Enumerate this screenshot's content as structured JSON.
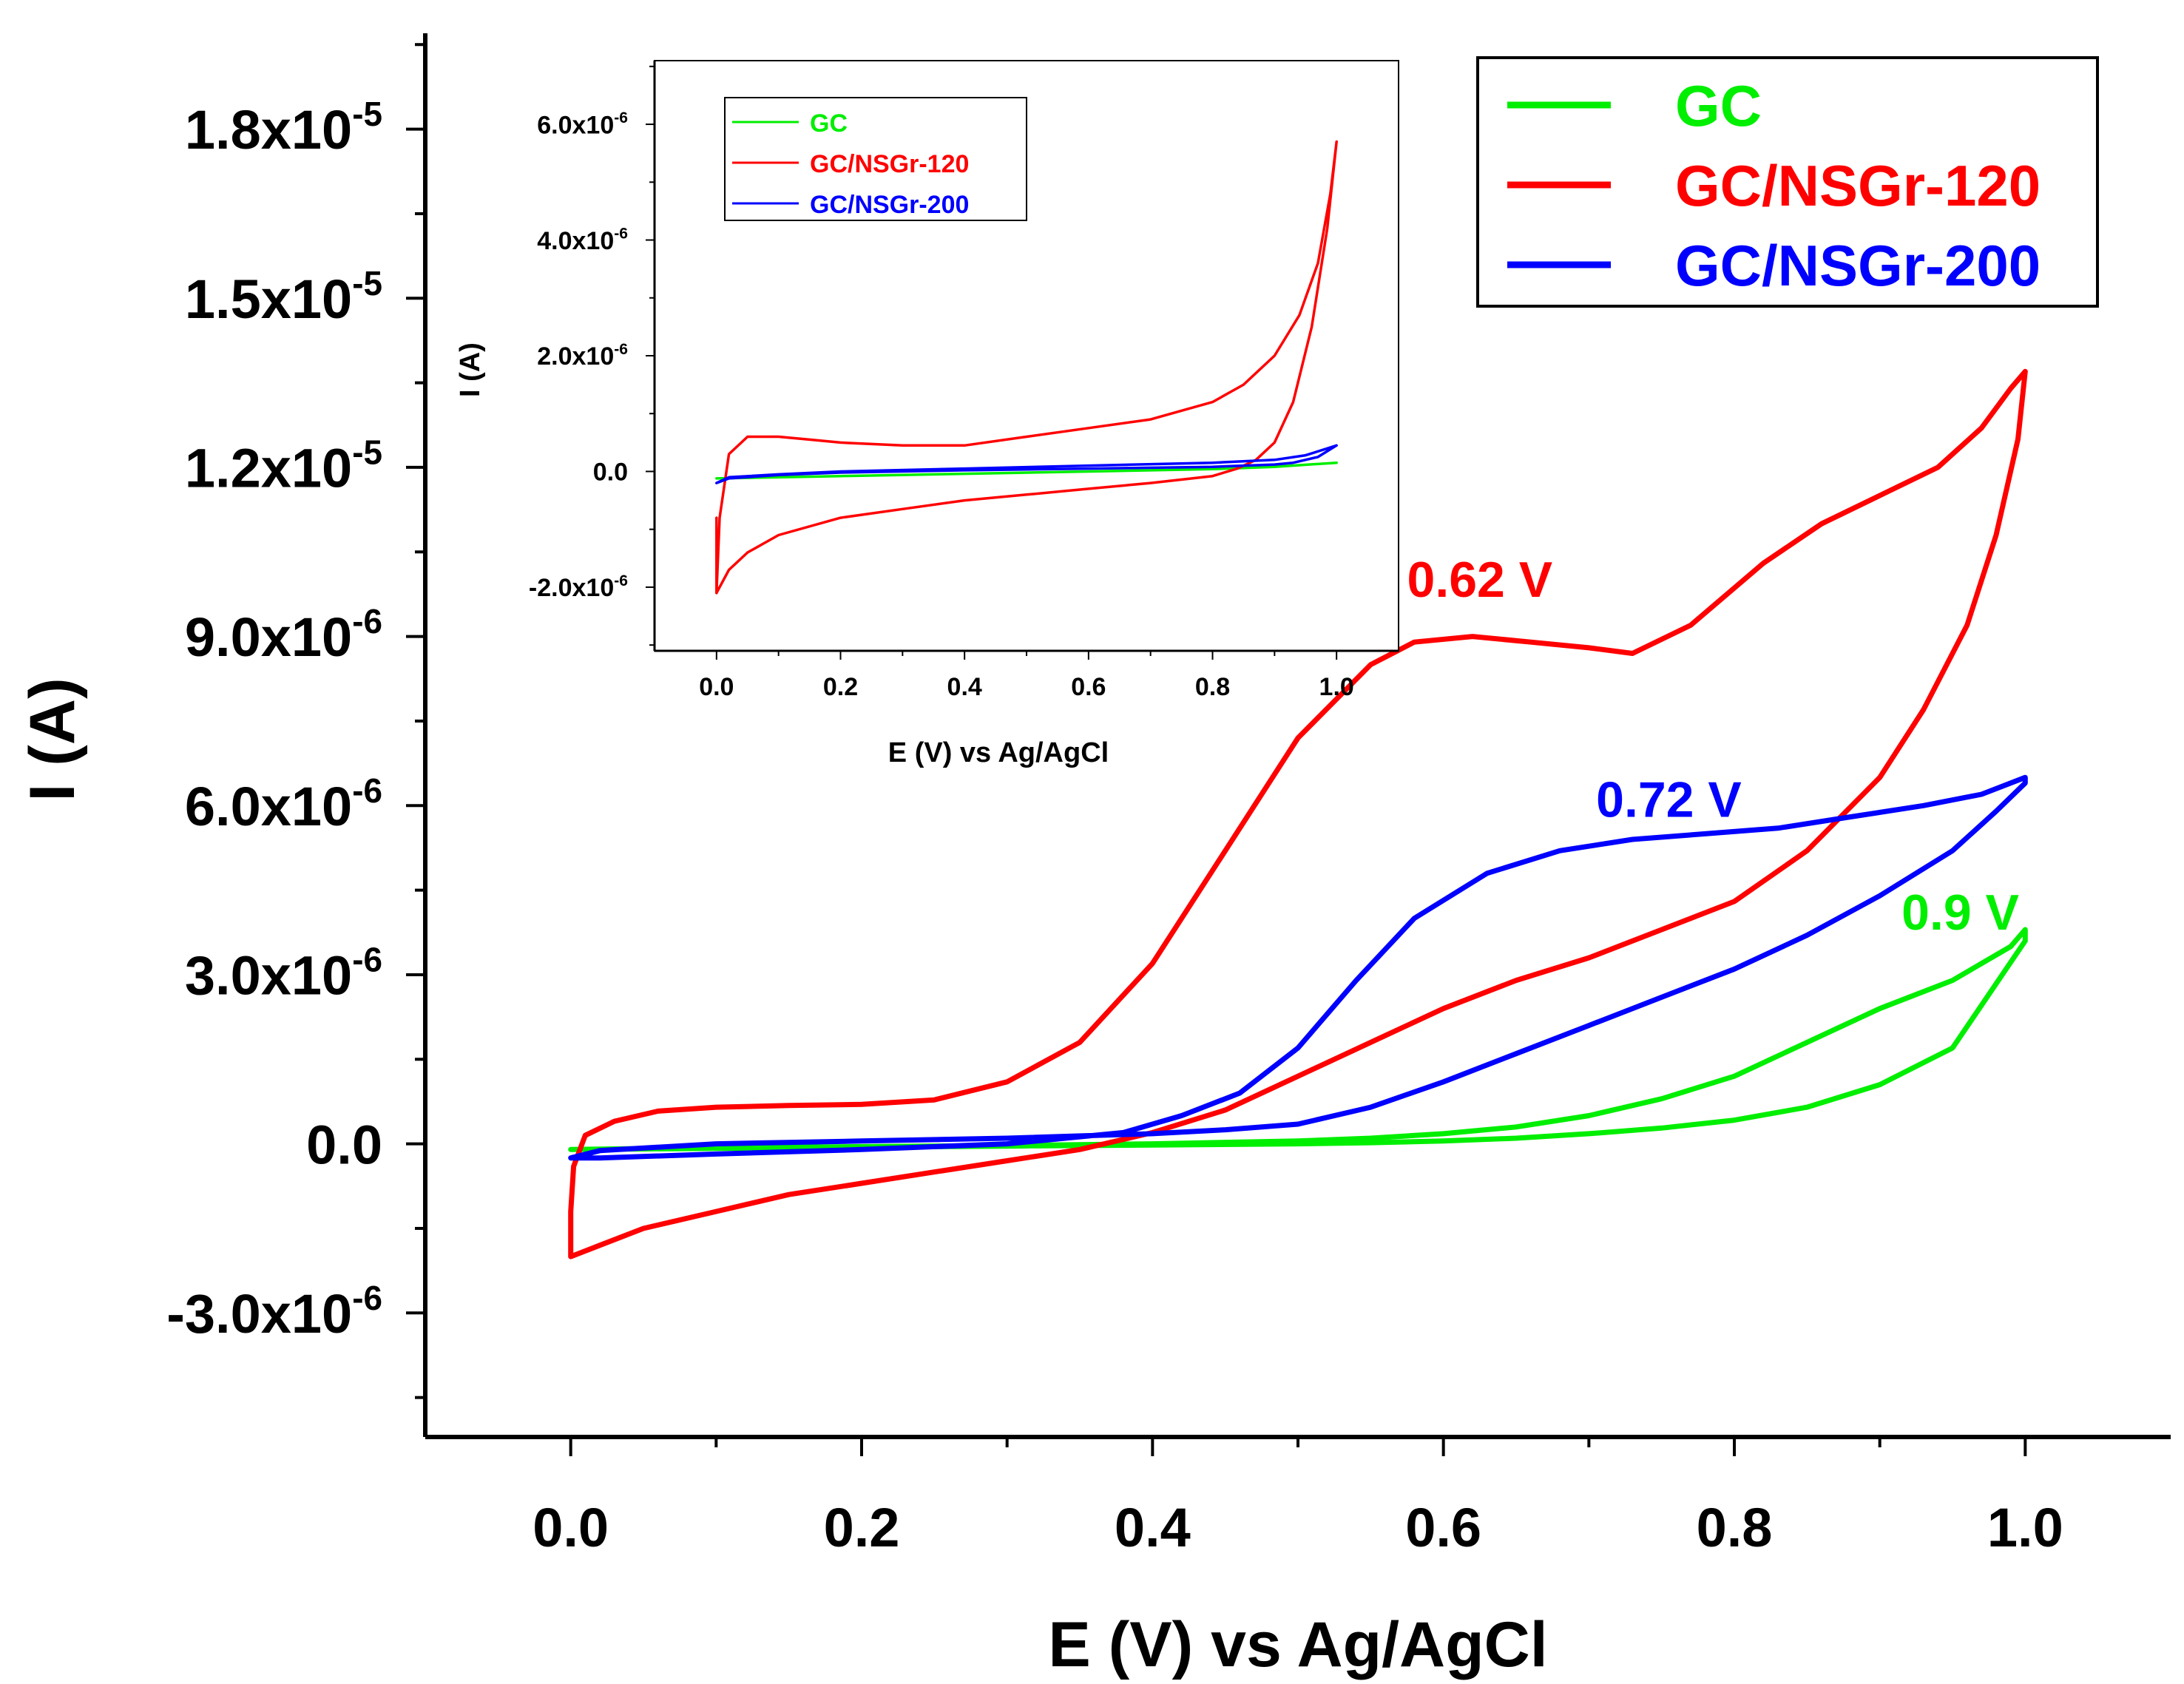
{
  "chart_data": [
    {
      "type": "line",
      "title": "",
      "xlabel": "E (V) vs Ag/AgCl",
      "ylabel": "I (A)",
      "xlim": [
        -0.1,
        1.1
      ],
      "ylim": [
        -5.2e-06,
        1.97e-05
      ],
      "x_ticks": [
        0.0,
        0.2,
        0.4,
        0.6,
        0.8,
        1.0
      ],
      "x_tick_labels": [
        "0.0",
        "0.2",
        "0.4",
        "0.6",
        "0.8",
        "1.0"
      ],
      "y_ticks": [
        -3e-06,
        0.0,
        3e-06,
        6e-06,
        9e-06,
        1.2e-05,
        1.5e-05,
        1.8e-05
      ],
      "y_tick_labels": [
        {
          "mantissa": "-3.0x10",
          "exp": "-6"
        },
        {
          "mantissa": "0.0",
          "exp": ""
        },
        {
          "mantissa": "3.0x10",
          "exp": "-6"
        },
        {
          "mantissa": "6.0x10",
          "exp": "-6"
        },
        {
          "mantissa": "9.0x10",
          "exp": "-6"
        },
        {
          "mantissa": "1.2x10",
          "exp": "-5"
        },
        {
          "mantissa": "1.5x10",
          "exp": "-5"
        },
        {
          "mantissa": "1.8x10",
          "exp": "-5"
        }
      ],
      "legend": {
        "position": "top-right"
      },
      "series": [
        {
          "name": "GC",
          "color": "#00ee00",
          "x": [
            0.0,
            0.1,
            0.2,
            0.3,
            0.4,
            0.5,
            0.55,
            0.6,
            0.65,
            0.7,
            0.75,
            0.8,
            0.85,
            0.9,
            0.95,
            1.0,
            1.0,
            0.99,
            0.97,
            0.95,
            0.9,
            0.85,
            0.8,
            0.75,
            0.7,
            0.65,
            0.6,
            0.55,
            0.5,
            0.4,
            0.3,
            0.2,
            0.1,
            0.03,
            0.0
          ],
          "y": [
            -1e-07,
            -8e-08,
            -6e-08,
            -4e-08,
            -2e-08,
            0.0,
            2e-08,
            5e-08,
            1e-07,
            1.8e-07,
            2.8e-07,
            4.2e-07,
            6.5e-07,
            1.05e-06,
            1.7e-06,
            3.6e-06,
            3.8e-06,
            3.5e-06,
            3.2e-06,
            2.9e-06,
            2.4e-06,
            1.8e-06,
            1.2e-06,
            8e-07,
            5e-07,
            3e-07,
            1.8e-07,
            1e-07,
            5e-08,
            0.0,
            -3e-08,
            -5e-08,
            -7e-08,
            -9e-08,
            -1e-07
          ]
        },
        {
          "name": "GC/NSGr-120",
          "color": "#ff0000",
          "x": [
            0.0,
            0.002,
            0.01,
            0.03,
            0.06,
            0.1,
            0.15,
            0.2,
            0.25,
            0.3,
            0.35,
            0.4,
            0.45,
            0.5,
            0.55,
            0.58,
            0.62,
            0.66,
            0.7,
            0.73,
            0.77,
            0.82,
            0.86,
            0.9,
            0.94,
            0.97,
            0.99,
            1.0,
            0.995,
            0.98,
            0.96,
            0.93,
            0.9,
            0.85,
            0.8,
            0.75,
            0.7,
            0.65,
            0.6,
            0.55,
            0.5,
            0.45,
            0.4,
            0.35,
            0.3,
            0.25,
            0.2,
            0.15,
            0.1,
            0.05,
            0.02,
            0.0,
            0.0
          ],
          "y": [
            -1.2e-06,
            -4e-07,
            1.5e-07,
            4e-07,
            5.8e-07,
            6.5e-07,
            6.8e-07,
            7e-07,
            7.8e-07,
            1.1e-06,
            1.8e-06,
            3.2e-06,
            5.2e-06,
            7.2e-06,
            8.5e-06,
            8.9e-06,
            9e-06,
            8.9e-06,
            8.8e-06,
            8.7e-06,
            9.2e-06,
            1.03e-05,
            1.1e-05,
            1.15e-05,
            1.2e-05,
            1.27e-05,
            1.34e-05,
            1.37e-05,
            1.25e-05,
            1.08e-05,
            9.2e-06,
            7.7e-06,
            6.5e-06,
            5.2e-06,
            4.3e-06,
            3.8e-06,
            3.3e-06,
            2.9e-06,
            2.4e-06,
            1.8e-06,
            1.2e-06,
            6e-07,
            2e-07,
            -1e-07,
            -3e-07,
            -5e-07,
            -7e-07,
            -9e-07,
            -1.2e-06,
            -1.5e-06,
            -1.8e-06,
            -2e-06,
            -1.2e-06
          ]
        },
        {
          "name": "GC/NSGr-200",
          "color": "#0000ff",
          "x": [
            0.0,
            0.02,
            0.1,
            0.2,
            0.3,
            0.4,
            0.45,
            0.5,
            0.55,
            0.6,
            0.65,
            0.7,
            0.75,
            0.8,
            0.85,
            0.9,
            0.95,
            0.98,
            1.0,
            1.0,
            0.97,
            0.93,
            0.88,
            0.83,
            0.78,
            0.73,
            0.68,
            0.63,
            0.58,
            0.54,
            0.5,
            0.46,
            0.42,
            0.38,
            0.3,
            0.2,
            0.1,
            0.02,
            0.0
          ],
          "y": [
            -2.5e-07,
            -1.2e-07,
            0.0,
            5e-08,
            1e-07,
            1.8e-07,
            2.5e-07,
            3.5e-07,
            6.5e-07,
            1.1e-06,
            1.6e-06,
            2.1e-06,
            2.6e-06,
            3.1e-06,
            3.7e-06,
            4.4e-06,
            5.2e-06,
            5.9e-06,
            6.4e-06,
            6.5e-06,
            6.2e-06,
            6e-06,
            5.8e-06,
            5.6e-06,
            5.5e-06,
            5.4e-06,
            5.2e-06,
            4.8e-06,
            4e-06,
            2.9e-06,
            1.7e-06,
            9e-07,
            5e-07,
            2e-07,
            0.0,
            -1e-07,
            -1.8e-07,
            -2.5e-07,
            -2.5e-07
          ]
        }
      ],
      "annotations": [
        {
          "text": "0.62 V",
          "x": 0.575,
          "y": 9.7e-06,
          "color": "#ff0000"
        },
        {
          "text": "0.72 V",
          "x": 0.705,
          "y": 5.8e-06,
          "color": "#0000ff"
        },
        {
          "text": "0.9 V",
          "x": 0.915,
          "y": 3.8e-06,
          "color": "#00ee00"
        }
      ]
    },
    {
      "type": "line",
      "title": "",
      "xlabel": "E (V) vs Ag/AgCl",
      "ylabel": "I (A)",
      "xlim": [
        -0.1,
        1.1
      ],
      "ylim": [
        -3.1e-06,
        7.1e-06
      ],
      "x_ticks": [
        0.0,
        0.2,
        0.4,
        0.6,
        0.8,
        1.0
      ],
      "x_tick_labels": [
        "0.0",
        "0.2",
        "0.4",
        "0.6",
        "0.8",
        "1.0"
      ],
      "y_ticks": [
        -2e-06,
        0.0,
        2e-06,
        4e-06,
        6e-06
      ],
      "y_tick_labels": [
        {
          "mantissa": "-2.0x10",
          "exp": "-6"
        },
        {
          "mantissa": "0.0",
          "exp": ""
        },
        {
          "mantissa": "2.0x10",
          "exp": "-6"
        },
        {
          "mantissa": "4.0x10",
          "exp": "-6"
        },
        {
          "mantissa": "6.0x10",
          "exp": "-6"
        }
      ],
      "legend": {
        "position": "top-left"
      },
      "series": [
        {
          "name": "GC",
          "color": "#00ee00",
          "x": [
            0.0,
            0.2,
            0.4,
            0.6,
            0.8,
            0.9,
            1.0,
            1.0,
            0.9,
            0.8,
            0.6,
            0.4,
            0.2,
            0.0
          ],
          "y": [
            -1.2e-07,
            -8e-08,
            -4e-08,
            0.0,
            4e-08,
            8e-08,
            1.5e-07,
            1.5e-07,
            8e-08,
            4e-08,
            0.0,
            -4e-08,
            -8e-08,
            -1.2e-07
          ]
        },
        {
          "name": "GC/NSGr-120",
          "color": "#ff0000",
          "x": [
            0.0,
            0.005,
            0.02,
            0.05,
            0.1,
            0.15,
            0.2,
            0.3,
            0.4,
            0.5,
            0.6,
            0.7,
            0.8,
            0.85,
            0.9,
            0.94,
            0.97,
            0.99,
            1.0,
            1.0,
            0.985,
            0.96,
            0.93,
            0.9,
            0.87,
            0.84,
            0.8,
            0.7,
            0.6,
            0.5,
            0.4,
            0.3,
            0.2,
            0.1,
            0.05,
            0.02,
            0.005,
            0.0,
            0.0
          ],
          "y": [
            -2.1e-06,
            -8e-07,
            3e-07,
            6e-07,
            6e-07,
            5.5e-07,
            5e-07,
            4.5e-07,
            4.5e-07,
            6e-07,
            7.5e-07,
            9e-07,
            1.2e-06,
            1.5e-06,
            2e-06,
            2.7e-06,
            3.6e-06,
            4.8e-06,
            5.7e-06,
            5.7e-06,
            4.2e-06,
            2.5e-06,
            1.2e-06,
            5e-07,
            2e-07,
            5e-08,
            -8e-08,
            -2e-07,
            -3e-07,
            -4e-07,
            -5e-07,
            -6.5e-07,
            -8e-07,
            -1.1e-06,
            -1.4e-06,
            -1.7e-06,
            -2e-06,
            -2.1e-06,
            -8e-07
          ]
        },
        {
          "name": "GC/NSGr-200",
          "color": "#0000ff",
          "x": [
            0.0,
            0.02,
            0.1,
            0.2,
            0.4,
            0.6,
            0.8,
            0.9,
            0.95,
            0.98,
            1.0,
            1.0,
            0.97,
            0.93,
            0.9,
            0.8,
            0.6,
            0.4,
            0.2,
            0.1,
            0.02,
            0.0
          ],
          "y": [
            -2e-07,
            -1e-07,
            -5e-08,
            0.0,
            5e-08,
            1e-07,
            1.5e-07,
            2e-07,
            2.8e-07,
            3.8e-07,
            4.5e-07,
            4.5e-07,
            2.5e-07,
            1.5e-07,
            1.2e-07,
            8e-08,
            5e-08,
            2e-08,
            -2e-08,
            -6e-08,
            -1.2e-07,
            -2e-07
          ]
        }
      ],
      "annotations": []
    }
  ]
}
